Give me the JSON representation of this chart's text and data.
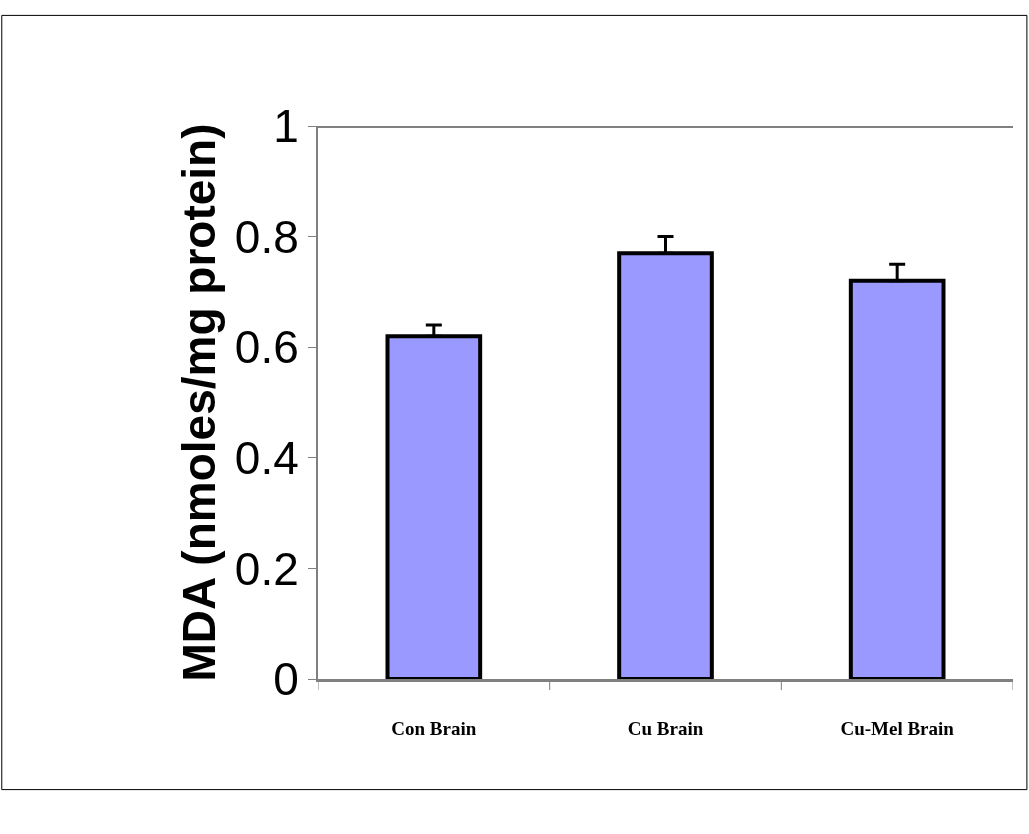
{
  "chart_data": {
    "type": "bar",
    "ylabel": "MDA (nmoles/mg protein)",
    "categories": [
      "Con Brain",
      "Cu Brain",
      "Cu-Mel Brain"
    ],
    "values": [
      0.62,
      0.77,
      0.72
    ],
    "errors": [
      0.02,
      0.03,
      0.03
    ],
    "color": "#9999ff",
    "ylim": [
      0,
      1
    ],
    "yticks": [
      0,
      0.2,
      0.4,
      0.6,
      0.8,
      1
    ],
    "legend": false
  }
}
